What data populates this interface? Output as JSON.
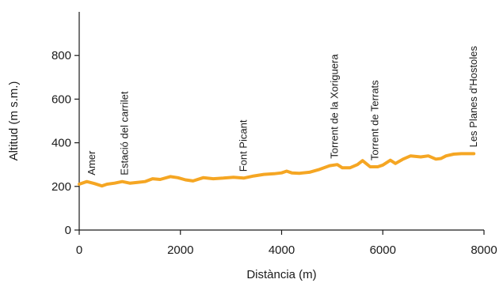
{
  "chart_data": {
    "type": "line",
    "title": "",
    "xlabel": "Distància (m)",
    "ylabel": "Altitud (m s.m.)",
    "xlim": [
      0,
      8000
    ],
    "ylim": [
      0,
      1000
    ],
    "xticks": [
      0,
      2000,
      4000,
      6000,
      8000
    ],
    "yticks": [
      0,
      200,
      400,
      600,
      800
    ],
    "grid": false,
    "colors": {
      "line": "#f5a623",
      "axis": "#1a1a1a"
    },
    "series": [
      {
        "x": [
          0,
          150,
          300,
          450,
          550,
          700,
          850,
          1000,
          1150,
          1300,
          1450,
          1600,
          1800,
          1950,
          2100,
          2250,
          2450,
          2650,
          2850,
          3050,
          3250,
          3450,
          3650,
          3850,
          4000,
          4100,
          4200,
          4350,
          4550,
          4750,
          4950,
          5100,
          5200,
          5350,
          5500,
          5600,
          5750,
          5900,
          6000,
          6150,
          6250,
          6400,
          6550,
          6750,
          6900,
          7050,
          7150,
          7250,
          7400,
          7550,
          7700,
          7800
        ],
        "y": [
          210,
          222,
          213,
          202,
          210,
          215,
          222,
          215,
          218,
          222,
          235,
          232,
          245,
          240,
          230,
          225,
          240,
          235,
          238,
          242,
          238,
          248,
          255,
          258,
          262,
          270,
          262,
          260,
          265,
          278,
          295,
          300,
          285,
          285,
          300,
          318,
          290,
          290,
          298,
          320,
          305,
          325,
          340,
          335,
          340,
          325,
          328,
          340,
          348,
          350,
          350,
          350
        ]
      }
    ],
    "annotations": [
      {
        "label": "Amer",
        "x": 250,
        "y": 222
      },
      {
        "label": "Estació del carrilet",
        "x": 900,
        "y": 222
      },
      {
        "label": "Font Picant",
        "x": 3250,
        "y": 238
      },
      {
        "label": "Torrent de la Xoriguera",
        "x": 5050,
        "y": 298
      },
      {
        "label": "Torrent de Terrats",
        "x": 5850,
        "y": 290
      },
      {
        "label": "Les Planes d'Hostoles",
        "x": 7800,
        "y": 350
      }
    ]
  }
}
